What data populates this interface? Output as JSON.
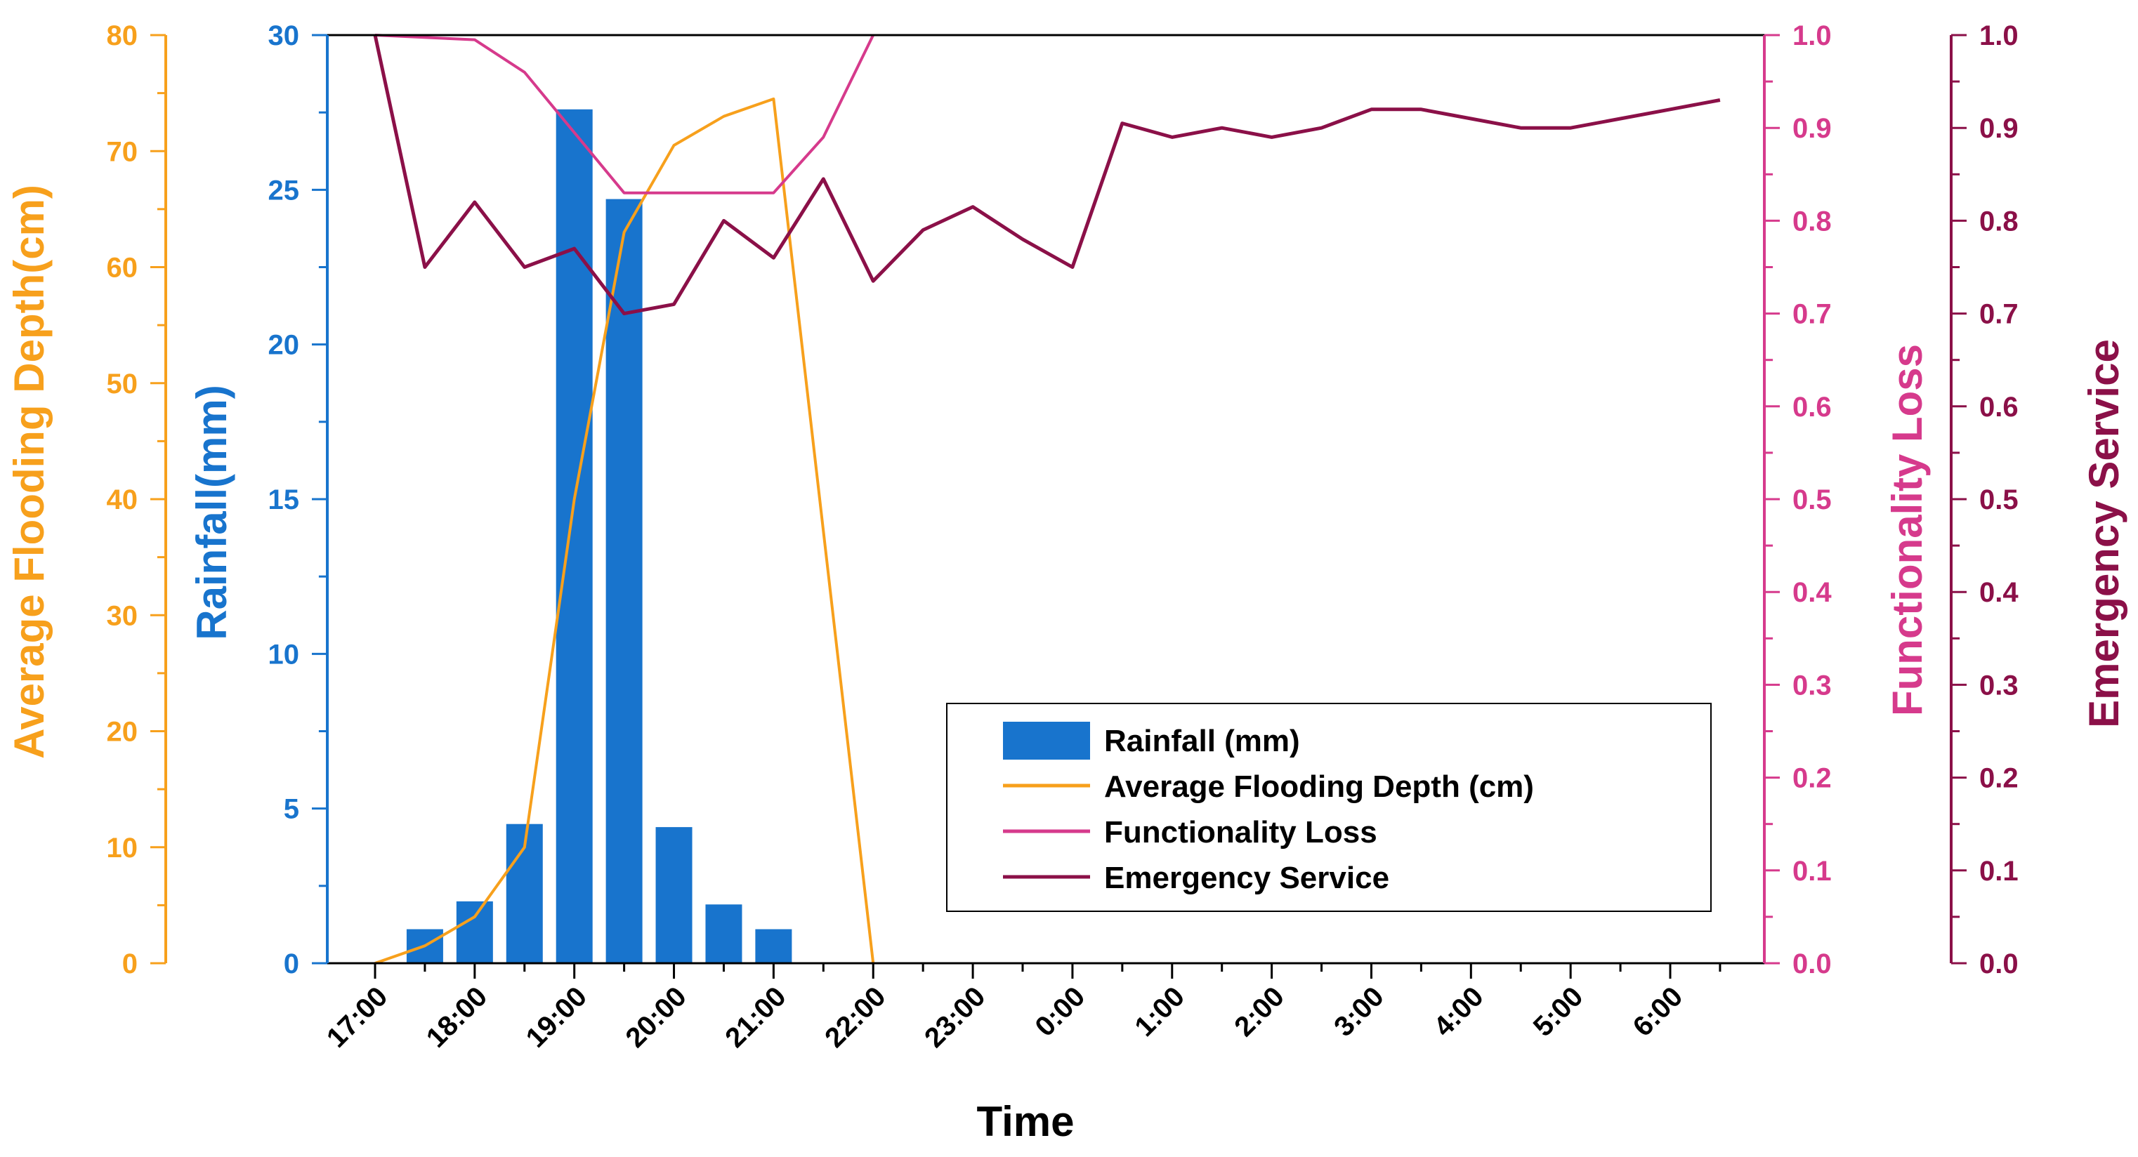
{
  "chart_data": {
    "type": "bar+line",
    "xlabel": "Time",
    "categories": [
      "17:00",
      "18:00",
      "19:00",
      "20:00",
      "21:00",
      "22:00",
      "23:00",
      "0:00",
      "1:00",
      "2:00",
      "3:00",
      "4:00",
      "5:00",
      "6:00"
    ],
    "axes": {
      "flooding": {
        "label": "Average Flooding Depth(cm)",
        "ylim": [
          0,
          80
        ],
        "ticks": [
          "0",
          "10",
          "20",
          "30",
          "40",
          "50",
          "60",
          "70",
          "80"
        ],
        "color": "#F7A01C"
      },
      "rainfall": {
        "label": "Rainfall(mm)",
        "ylim": [
          0,
          30
        ],
        "ticks": [
          "0",
          "5",
          "10",
          "15",
          "20",
          "25",
          "30"
        ],
        "color": "#1874CD"
      },
      "functionality": {
        "label": "Functionality Loss",
        "ylim": [
          0,
          1.0
        ],
        "ticks": [
          "0.0",
          "0.1",
          "0.2",
          "0.3",
          "0.4",
          "0.5",
          "0.6",
          "0.7",
          "0.8",
          "0.9",
          "1.0"
        ],
        "color": "#D63A8C"
      },
      "emergency": {
        "label": "Emergency Service",
        "ylim": [
          0,
          1.0
        ],
        "ticks": [
          "0.0",
          "0.1",
          "0.2",
          "0.3",
          "0.4",
          "0.5",
          "0.6",
          "0.7",
          "0.8",
          "0.9",
          "1.0"
        ],
        "color": "#8B1048"
      }
    },
    "series": [
      {
        "name": "Rainfall (mm)",
        "kind": "bar",
        "axis": "rainfall",
        "x": [
          17.5,
          18.0,
          18.5,
          19.0,
          19.5,
          20.0,
          20.5,
          21.0
        ],
        "values": [
          1.1,
          2.0,
          4.5,
          27.6,
          24.7,
          4.4,
          1.9,
          1.1
        ]
      },
      {
        "name": "Average Flooding Depth (cm)",
        "kind": "line",
        "axis": "flooding",
        "x": [
          17.0,
          17.5,
          18.0,
          18.5,
          19.0,
          19.5,
          20.0,
          20.5,
          21.0,
          22.0
        ],
        "values": [
          0,
          1.5,
          4,
          10,
          40,
          63,
          70.5,
          73,
          74.5,
          0
        ]
      },
      {
        "name": "Functionality Loss",
        "kind": "line",
        "axis": "functionality",
        "x": [
          17.0,
          18.0,
          18.5,
          19.0,
          19.5,
          20.0,
          20.5,
          21.0,
          21.5,
          22.0
        ],
        "values": [
          1.0,
          0.995,
          0.96,
          0.895,
          0.83,
          0.83,
          0.83,
          0.83,
          0.89,
          1.0
        ]
      },
      {
        "name": "Emergency Service",
        "kind": "line",
        "axis": "emergency",
        "x": [
          17.0,
          17.5,
          18.0,
          18.5,
          19.0,
          19.5,
          20.0,
          20.5,
          21.0,
          21.5,
          22.0,
          22.5,
          23.0,
          23.5,
          24.0,
          24.5,
          25.0,
          25.5,
          26.0,
          26.5,
          27.0,
          27.5,
          28.0,
          28.5,
          29.0,
          29.5,
          30.0,
          30.5
        ],
        "values": [
          1.0,
          0.75,
          0.82,
          0.75,
          0.77,
          0.7,
          0.71,
          0.8,
          0.76,
          0.845,
          0.735,
          0.79,
          0.815,
          0.78,
          0.75,
          0.905,
          0.89,
          0.9,
          0.89,
          0.9,
          0.92,
          0.92,
          0.91,
          0.9,
          0.9,
          0.91,
          0.92,
          0.93
        ]
      }
    ],
    "legend": {
      "position": "center-right",
      "entries": [
        {
          "label": "Rainfall (mm)",
          "symbol": "bar",
          "color": "#1874CD"
        },
        {
          "label": "Average Flooding Depth (cm)",
          "symbol": "line",
          "color": "#F7A01C"
        },
        {
          "label": "Functionality Loss",
          "symbol": "line",
          "color": "#D63A8C"
        },
        {
          "label": "Emergency Service",
          "symbol": "line",
          "color": "#8B1048"
        }
      ]
    }
  }
}
